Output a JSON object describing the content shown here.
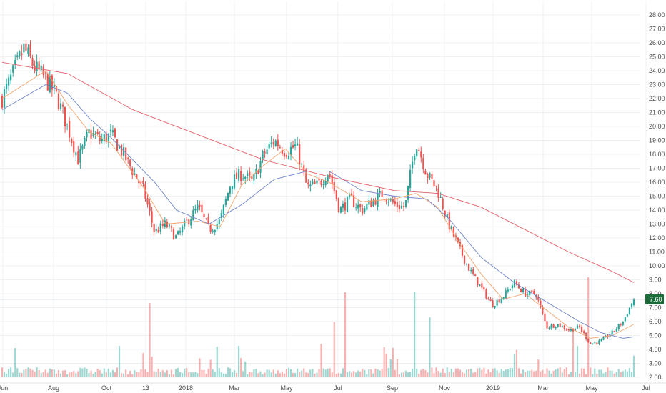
{
  "colors": {
    "up": "#26a69a",
    "down": "#ef5350",
    "ma_short": "#f5a36b",
    "ma_mid": "#6e83c8",
    "ma_long": "#e0606a",
    "price_tag": "#1b6b3a",
    "grid": "#eef0f4",
    "axis_text": "#4a4a4a"
  },
  "chart_data": {
    "type": "candlestick",
    "title": "",
    "xlabel": "",
    "ylabel": "",
    "ylim": [
      2.0,
      28.0
    ],
    "grid": true,
    "x_tick_labels": [
      "Jun",
      "Aug",
      "Oct",
      "13",
      "2018",
      "Mar",
      "May",
      "Jul",
      "Sep",
      "Nov",
      "2019",
      "Mar",
      "May",
      "Jul"
    ],
    "y_tick_labels": [
      "2.00",
      "3.00",
      "4.00",
      "5.00",
      "6.00",
      "7.00",
      "8.00",
      "9.00",
      "10.00",
      "11.00",
      "12.00",
      "13.00",
      "14.00",
      "15.00",
      "16.00",
      "17.00",
      "18.00",
      "19.00",
      "20.00",
      "21.00",
      "22.00",
      "23.00",
      "24.00",
      "25.00",
      "26.00",
      "27.00",
      "28.00"
    ],
    "last_price": "7.60",
    "price_path": [
      [
        "Jun",
        22.0
      ],
      [
        "Jun",
        23.8
      ],
      [
        "Jun",
        25.6
      ],
      [
        "Jun",
        24.2
      ],
      [
        "Jun",
        23.4
      ],
      [
        "Aug",
        22.2
      ],
      [
        "Aug",
        20.0
      ],
      [
        "Aug",
        17.6
      ],
      [
        "Aug",
        19.6
      ],
      [
        "Aug",
        19.0
      ],
      [
        "Oct",
        19.4
      ],
      [
        "Oct",
        18.2
      ],
      [
        "Oct",
        16.8
      ],
      [
        "Oct",
        15.4
      ],
      [
        "13",
        12.4
      ],
      [
        "13",
        13.0
      ],
      [
        "13",
        12.0
      ],
      [
        "2018",
        13.2
      ],
      [
        "2018",
        14.2
      ],
      [
        "2018",
        12.6
      ],
      [
        "2018",
        13.2
      ],
      [
        "Mar",
        16.0
      ],
      [
        "Mar",
        16.6
      ],
      [
        "Mar",
        16.0
      ],
      [
        "Mar",
        18.0
      ],
      [
        "May",
        19.0
      ],
      [
        "May",
        18.2
      ],
      [
        "May",
        18.6
      ],
      [
        "May",
        15.6
      ],
      [
        "May",
        15.8
      ],
      [
        "Jul",
        16.8
      ],
      [
        "Jul",
        14.0
      ],
      [
        "Jul",
        14.8
      ],
      [
        "Jul",
        14.0
      ],
      [
        "Jul",
        14.6
      ],
      [
        "Sep",
        15.2
      ],
      [
        "Sep",
        14.4
      ],
      [
        "Sep",
        14.2
      ],
      [
        "Sep",
        19.0
      ],
      [
        "Sep",
        16.6
      ],
      [
        "Nov",
        15.4
      ],
      [
        "Nov",
        13.0
      ],
      [
        "Nov",
        11.2
      ],
      [
        "Nov",
        9.6
      ],
      [
        "Nov",
        8.4
      ],
      [
        "2019",
        7.2
      ],
      [
        "2019",
        7.8
      ],
      [
        "2019",
        8.8
      ],
      [
        "2019",
        8.0
      ],
      [
        "2019",
        8.0
      ],
      [
        "Mar",
        5.6
      ],
      [
        "Mar",
        5.8
      ],
      [
        "Mar",
        5.4
      ],
      [
        "Mar",
        5.6
      ],
      [
        "May",
        4.4
      ],
      [
        "May",
        4.6
      ],
      [
        "May",
        5.2
      ],
      [
        "May",
        6.0
      ],
      [
        "May",
        7.6
      ]
    ],
    "moving_averages": [
      {
        "type": "line",
        "color_key": "ma_short",
        "points": [
          [
            0,
            22.0
          ],
          [
            4,
            24.0
          ],
          [
            6,
            21.6
          ],
          [
            8,
            19.6
          ],
          [
            10,
            18.8
          ],
          [
            13,
            15.6
          ],
          [
            15,
            13.0
          ],
          [
            18,
            13.2
          ],
          [
            20,
            12.8
          ],
          [
            22,
            15.8
          ],
          [
            24,
            17.2
          ],
          [
            26,
            18.4
          ],
          [
            28,
            16.6
          ],
          [
            30,
            16.0
          ],
          [
            33,
            14.6
          ],
          [
            36,
            14.8
          ],
          [
            38,
            15.2
          ],
          [
            40,
            14.2
          ],
          [
            42,
            11.6
          ],
          [
            44,
            9.4
          ],
          [
            46,
            7.6
          ],
          [
            48,
            8.0
          ],
          [
            50,
            6.8
          ],
          [
            52,
            5.6
          ],
          [
            54,
            4.8
          ],
          [
            56,
            5.0
          ],
          [
            58,
            5.8
          ]
        ]
      },
      {
        "type": "line",
        "color_key": "ma_mid",
        "points": [
          [
            0,
            21.2
          ],
          [
            4,
            23.0
          ],
          [
            6,
            22.4
          ],
          [
            8,
            20.6
          ],
          [
            10,
            19.2
          ],
          [
            14,
            16.0
          ],
          [
            16,
            14.0
          ],
          [
            19,
            13.0
          ],
          [
            22,
            14.4
          ],
          [
            25,
            16.2
          ],
          [
            28,
            16.8
          ],
          [
            30,
            16.8
          ],
          [
            33,
            15.4
          ],
          [
            36,
            15.0
          ],
          [
            39,
            14.8
          ],
          [
            41,
            13.4
          ],
          [
            44,
            10.6
          ],
          [
            47,
            8.8
          ],
          [
            50,
            7.4
          ],
          [
            53,
            6.0
          ],
          [
            55,
            5.2
          ],
          [
            57,
            4.8
          ],
          [
            58,
            4.9
          ]
        ]
      },
      {
        "type": "line",
        "color_key": "ma_long",
        "points": [
          [
            0,
            24.6
          ],
          [
            6,
            23.8
          ],
          [
            12,
            21.2
          ],
          [
            18,
            19.4
          ],
          [
            24,
            17.6
          ],
          [
            30,
            16.4
          ],
          [
            36,
            15.4
          ],
          [
            40,
            15.2
          ],
          [
            44,
            14.2
          ],
          [
            48,
            12.6
          ],
          [
            52,
            11.0
          ],
          [
            56,
            9.6
          ],
          [
            58,
            8.8
          ]
        ]
      }
    ]
  }
}
